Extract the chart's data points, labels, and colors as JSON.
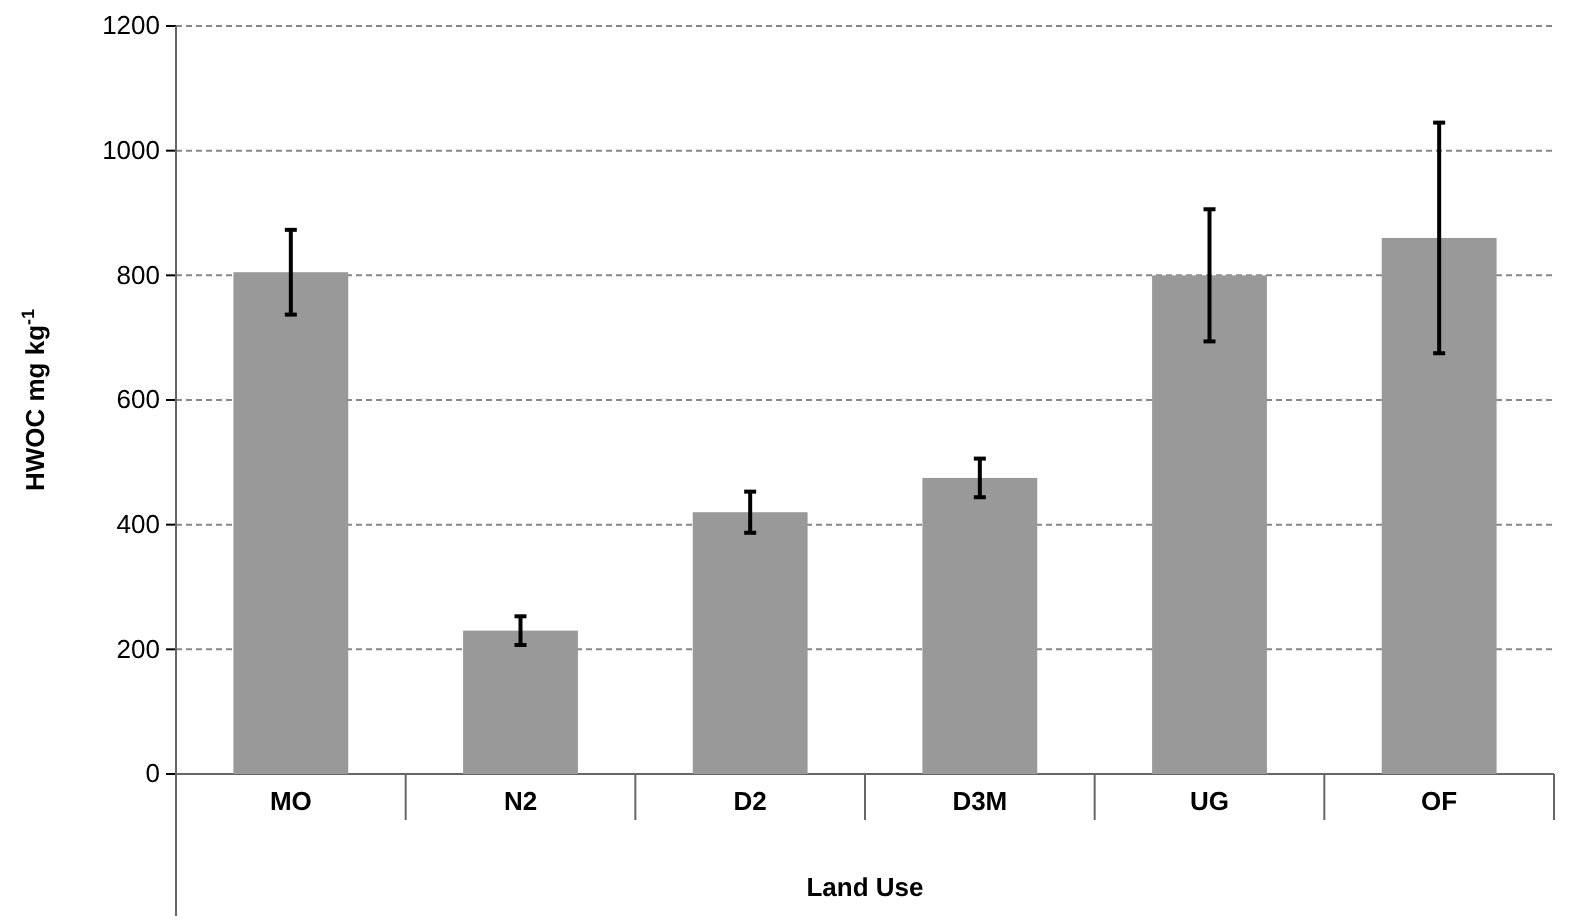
{
  "chart_data": {
    "type": "bar",
    "xlabel": "Land Use",
    "ylabel": "HWOC  mg kg$^{-1}$",
    "categories": [
      "MO",
      "N2",
      "D2",
      "D3M",
      "UG",
      "OF"
    ],
    "values": [
      805,
      230,
      420,
      475,
      800,
      860
    ],
    "errors": [
      68,
      23,
      33,
      31,
      106,
      185
    ],
    "color": "#999999",
    "ylim": [
      0,
      1200
    ],
    "yticks": [
      0,
      200,
      400,
      600,
      800,
      1000,
      1200
    ],
    "grid": "y"
  }
}
